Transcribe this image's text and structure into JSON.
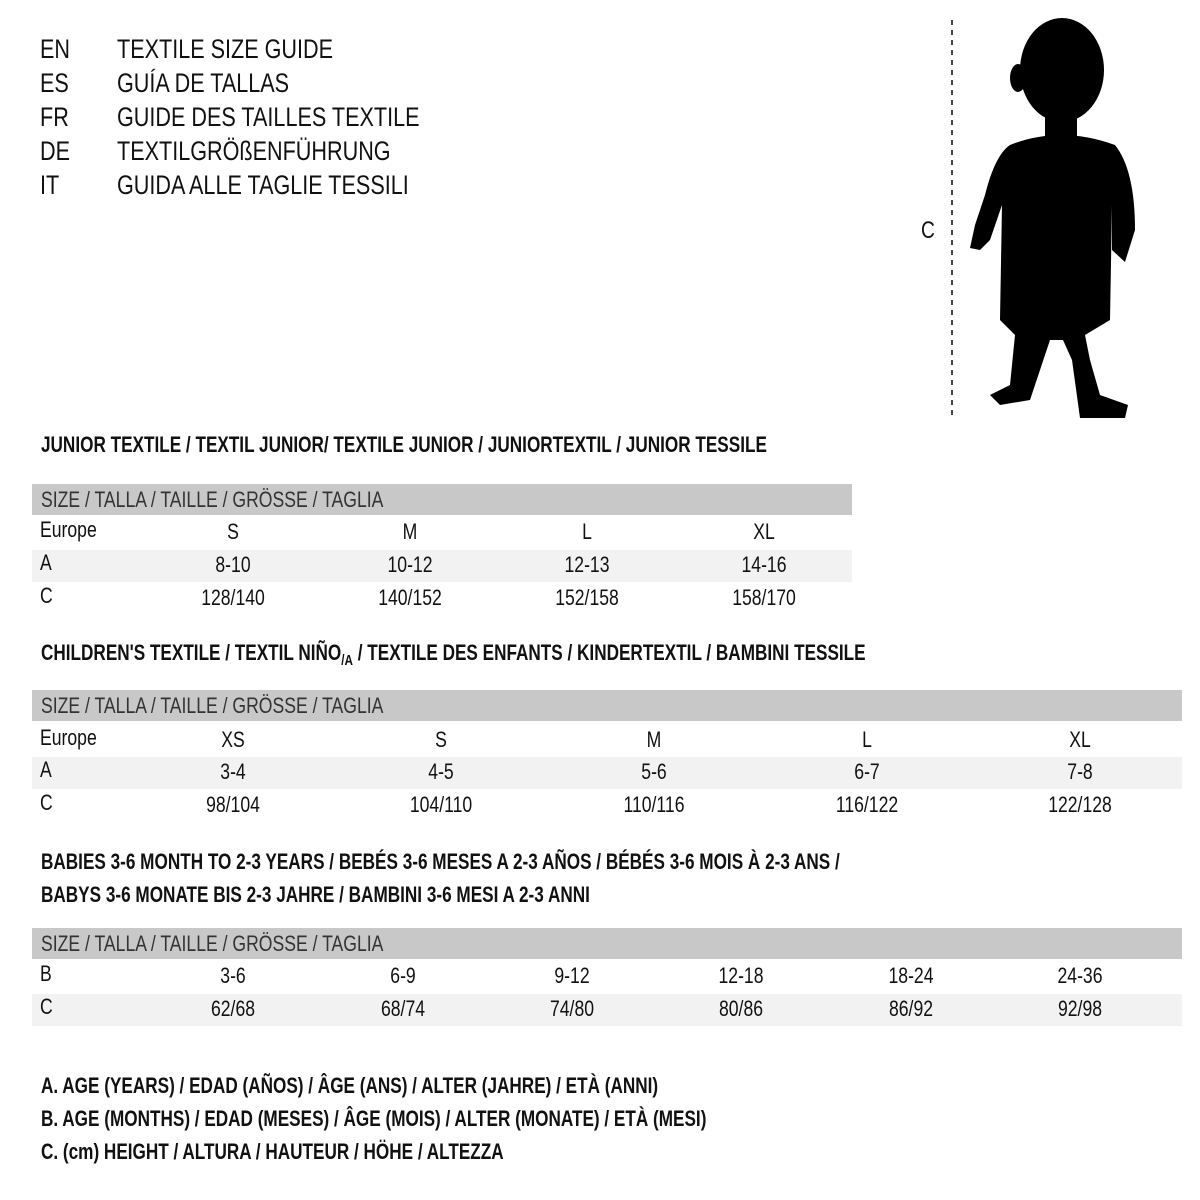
{
  "titles": [
    {
      "code": "EN",
      "text": "TEXTILE SIZE GUIDE"
    },
    {
      "code": "ES",
      "text": "GUÍA DE TALLAS"
    },
    {
      "code": "FR",
      "text": "GUIDE DES TAILLES TEXTILE"
    },
    {
      "code": "DE",
      "text": "TEXTILGRÖßENFÜHRUNG"
    },
    {
      "code": "IT",
      "text": "GUIDA ALLE TAGLIE TESSILI"
    }
  ],
  "figure": {
    "label": "C",
    "icon": "child-silhouette-icon"
  },
  "size_header": "SIZE / TALLA / TAILLE / GRÖSSE / TAGLIA",
  "colors": {
    "header_bg": "#c8c8c8",
    "alt_row_bg": "#f2f2f2"
  },
  "junior": {
    "heading": "JUNIOR TEXTILE / TEXTIL JUNIOR/ TEXTILE JUNIOR / JUNIORTEXTIL / JUNIOR TESSILE",
    "rows": [
      {
        "label": "Europe",
        "values": [
          "S",
          "M",
          "L",
          "XL"
        ]
      },
      {
        "label": "A",
        "values": [
          "8-10",
          "10-12",
          "12-13",
          "14-16"
        ]
      },
      {
        "label": "C",
        "values": [
          "128/140",
          "140/152",
          "152/158",
          "158/170"
        ]
      }
    ]
  },
  "children": {
    "heading_a": "CHILDREN'S TEXTILE / TEXTIL NIÑO",
    "heading_sub": "/A",
    "heading_b": " / TEXTILE DES ENFANTS / KINDERTEXTIL / BAMBINI TESSILE",
    "rows": [
      {
        "label": "Europe",
        "values": [
          "XS",
          "S",
          "M",
          "L",
          "XL"
        ]
      },
      {
        "label": "A",
        "values": [
          "3-4",
          "4-5",
          "5-6",
          "6-7",
          "7-8"
        ]
      },
      {
        "label": "C",
        "values": [
          "98/104",
          "104/110",
          "110/116",
          "116/122",
          "122/128"
        ]
      }
    ]
  },
  "babies": {
    "heading_1": "BABIES 3-6 MONTH TO 2-3 YEARS / BEBÉS 3-6 MESES A 2-3 AÑOS / BÉBÉS 3-6 MOIS À 2-3 ANS /",
    "heading_2": "BABYS 3-6 MONATE BIS 2-3 JAHRE / BAMBINI 3-6 MESI A 2-3 ANNI",
    "rows": [
      {
        "label": "B",
        "values": [
          "3-6",
          "6-9",
          "9-12",
          "12-18",
          "18-24",
          "24-36"
        ]
      },
      {
        "label": "C",
        "values": [
          "62/68",
          "68/74",
          "74/80",
          "80/86",
          "86/92",
          "92/98"
        ]
      }
    ]
  },
  "legend": [
    "A. AGE (YEARS) / EDAD (AÑOS) / ÂGE (ANS) / ALTER (JAHRE) / ETÀ (ANNI)",
    "B. AGE (MONTHS) / EDAD (MESES) / ÂGE (MOIS) / ALTER (MONATE) / ETÀ (MESI)",
    "C. (cm) HEIGHT / ALTURA / HAUTEUR / HÖHE / ALTEZZA"
  ]
}
